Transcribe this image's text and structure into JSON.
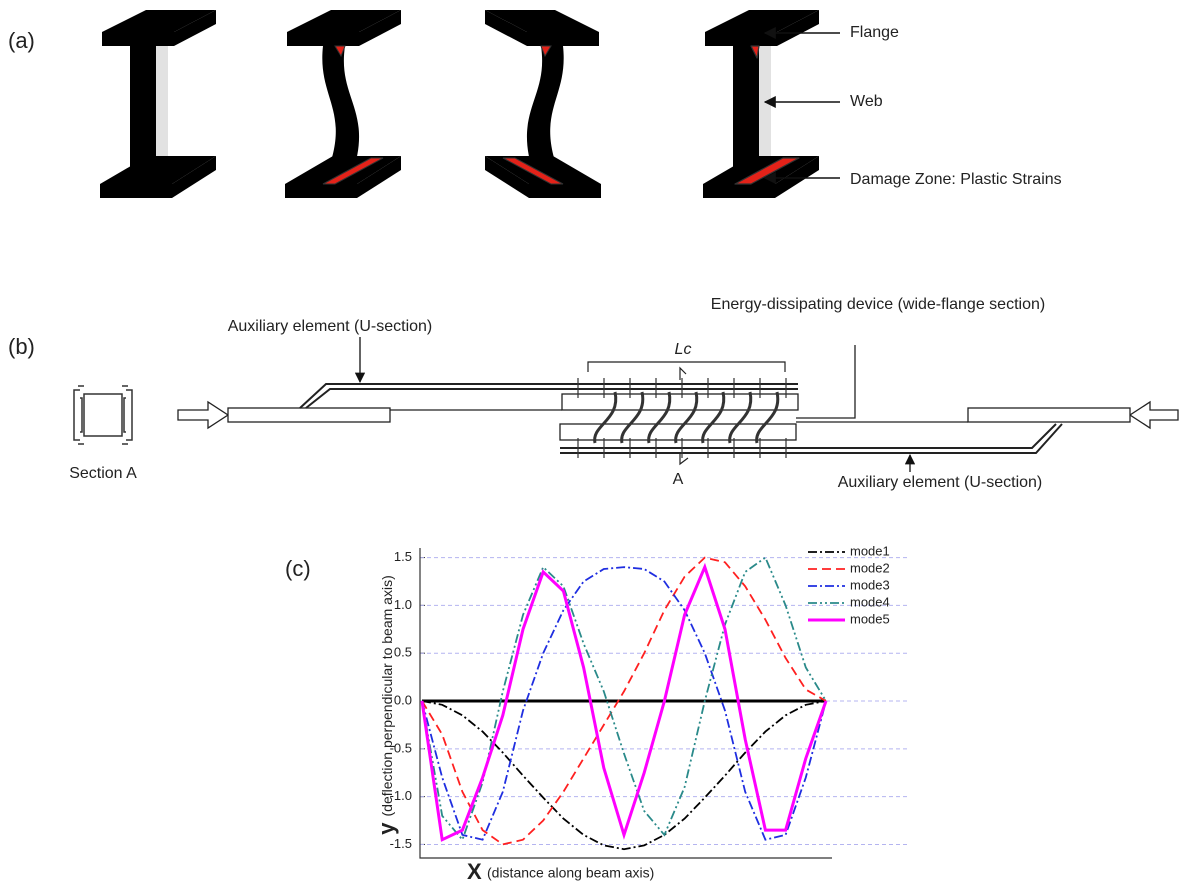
{
  "panel_a": {
    "label": "(a)",
    "callouts": [
      "Flange",
      "Web",
      "Damage Zone: Plastic Strains"
    ]
  },
  "panel_b": {
    "label": "(b)",
    "top_label": "Auxiliary element (U-section)",
    "device_label": "Energy-dissipating device (wide-flange section)",
    "length_label": "Lc",
    "section_cut": "A",
    "bottom_label": "Auxiliary element (U-section)",
    "section_caption": "Section A"
  },
  "chart_data": {
    "type": "line",
    "panel_label": "(c)",
    "x_label": {
      "symbol": "X",
      "text": "(distance along beam axis)"
    },
    "y_label": {
      "symbol": "y",
      "text": "(deflection perpendicular to beam axis)"
    },
    "x": [
      0,
      0.05,
      0.1,
      0.15,
      0.2,
      0.25,
      0.3,
      0.35,
      0.4,
      0.45,
      0.5,
      0.55,
      0.6,
      0.65,
      0.7,
      0.75,
      0.8,
      0.85,
      0.9,
      0.95,
      1
    ],
    "xlim": [
      0,
      1
    ],
    "ylim": [
      -1.6,
      1.6
    ],
    "yticks": [
      -1.5,
      {
        "value": -1,
        "label": "-1.0"
      },
      -0.5,
      {
        "value": 0,
        "label": "0.0"
      },
      0.5,
      {
        "value": 1,
        "label": "1.0"
      },
      1.5
    ],
    "grid": true,
    "legend": "top-right",
    "series": [
      {
        "name": "mode1",
        "color": "#000000",
        "style": "dashdot",
        "values": [
          0,
          -0.04,
          -0.15,
          -0.32,
          -0.54,
          -0.78,
          -1.01,
          -1.23,
          -1.4,
          -1.51,
          -1.55,
          -1.51,
          -1.4,
          -1.23,
          -1.01,
          -0.78,
          -0.54,
          -0.32,
          -0.15,
          -0.04,
          0
        ]
      },
      {
        "name": "mode2",
        "color": "#ff2020",
        "style": "dash",
        "values": [
          0,
          -0.35,
          -0.95,
          -1.35,
          -1.5,
          -1.45,
          -1.25,
          -0.95,
          -0.6,
          -0.25,
          0.1,
          0.5,
          0.95,
          1.3,
          1.5,
          1.45,
          1.2,
          0.85,
          0.45,
          0.12,
          0
        ]
      },
      {
        "name": "mode3",
        "color": "#1f2ee0",
        "style": "dashdot",
        "values": [
          0,
          -0.8,
          -1.4,
          -1.45,
          -0.95,
          -0.1,
          0.5,
          0.95,
          1.25,
          1.38,
          1.4,
          1.38,
          1.25,
          0.95,
          0.5,
          -0.1,
          -0.95,
          -1.45,
          -1.4,
          -0.8,
          0
        ]
      },
      {
        "name": "mode4",
        "color": "#2a8a8a",
        "style": "dashdotdot",
        "values": [
          0,
          -1.2,
          -1.45,
          -0.85,
          0.1,
          0.9,
          1.4,
          1.2,
          0.6,
          0.1,
          -0.55,
          -1.15,
          -1.4,
          -0.9,
          0,
          0.8,
          1.35,
          1.5,
          1,
          0.35,
          0
        ]
      },
      {
        "name": "mode5",
        "color": "#ff00ff",
        "style": "solid",
        "values": [
          0,
          -1.45,
          -1.35,
          -0.8,
          -0.15,
          0.75,
          1.35,
          1.15,
          0.35,
          -0.7,
          -1.4,
          -0.75,
          0,
          0.9,
          1.4,
          0.75,
          -0.4,
          -1.35,
          -1.35,
          -0.6,
          0
        ]
      }
    ]
  }
}
